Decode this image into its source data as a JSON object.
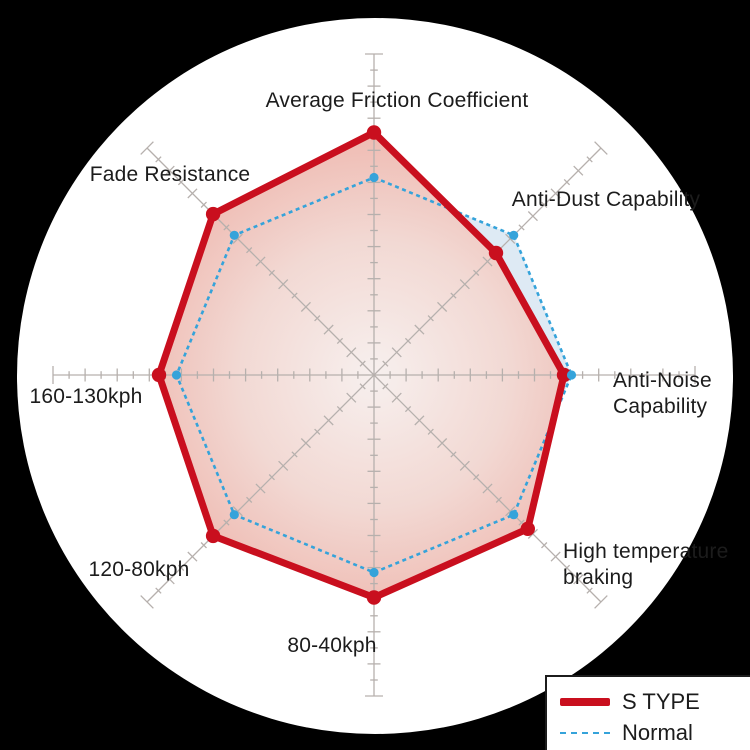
{
  "page": {
    "background_color": "#000000",
    "disc_color": "#ffffff"
  },
  "chart_data": {
    "type": "radar",
    "title": "",
    "categories": [
      "Average Friction Coefficient",
      "Anti-Dust Capability",
      "Anti-Noise Capability",
      "High temperature braking",
      "80-40kph",
      "120-80kph",
      "160-130kph",
      "Fade Resistance"
    ],
    "axis_labels": [
      {
        "lines": [
          "Average Friction Coefficient",
          ""
        ]
      },
      {
        "lines": [
          "Anti-Dust Capability",
          ""
        ]
      },
      {
        "lines": [
          "Anti-Noise",
          "Capability"
        ]
      },
      {
        "lines": [
          "High temperature",
          "braking"
        ]
      },
      {
        "lines": [
          "80-40kph",
          ""
        ]
      },
      {
        "lines": [
          "120-80kph",
          ""
        ]
      },
      {
        "lines": [
          "160-130kph",
          ""
        ]
      },
      {
        "lines": [
          "Fade Resistance",
          ""
        ]
      }
    ],
    "series": [
      {
        "name": "S TYPE",
        "style": "solid",
        "color": "#c90f1e",
        "fill_center": "#f8f0ee",
        "fill_mid": "#f3d8d2",
        "fill_edge": "#eeb7ae",
        "values": [
          9.7,
          6.9,
          7.6,
          8.7,
          8.9,
          9.1,
          8.6,
          9.1
        ]
      },
      {
        "name": "Normal",
        "style": "dashed",
        "color": "#35a3da",
        "fill": "rgba(168,199,226,0.38)",
        "values": [
          7.9,
          7.9,
          7.9,
          7.9,
          7.9,
          7.9,
          7.9,
          7.9
        ]
      }
    ],
    "value_scale": "0-10",
    "axis_tick_count": 20,
    "grid": true,
    "grid_color": "#b6b0ad",
    "legend_position": "bottom-right"
  },
  "legend": {
    "items": [
      {
        "label": "S TYPE",
        "color": "#c90f1e",
        "style": "solid"
      },
      {
        "label": "Normal",
        "color": "#35a3da",
        "style": "dashed"
      }
    ]
  }
}
